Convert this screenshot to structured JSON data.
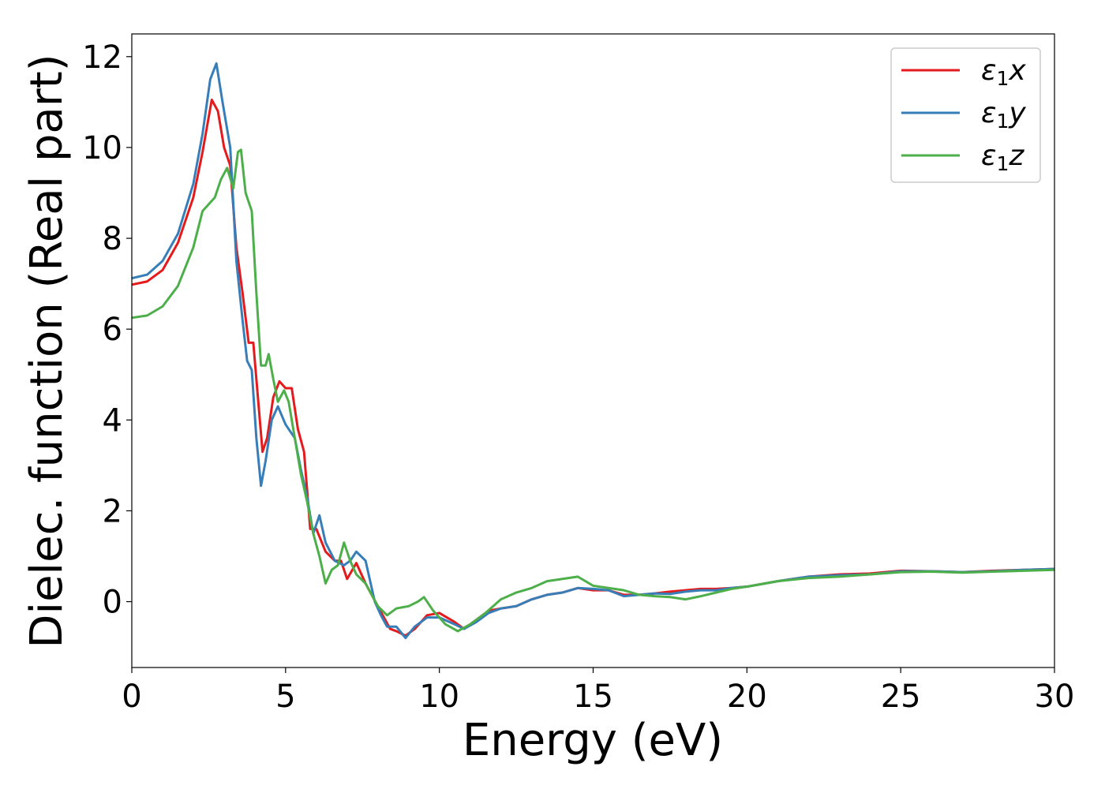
{
  "chart_data": {
    "type": "line",
    "title": "",
    "xlabel": "Energy (eV)",
    "ylabel": "Dielec. function (Real part)",
    "xlim": [
      0,
      30
    ],
    "ylim": [
      -1.45,
      12.5
    ],
    "xticks": [
      0,
      5,
      10,
      15,
      20,
      25,
      30
    ],
    "yticks": [
      0,
      2,
      4,
      6,
      8,
      10,
      12
    ],
    "grid": false,
    "legend_position": "top-right",
    "series": [
      {
        "name": "ε₁x",
        "legend_base": "ε",
        "legend_sub": "1",
        "legend_suffix": "x",
        "color": "#e41a1c",
        "points": [
          [
            0,
            6.98
          ],
          [
            0.5,
            7.05
          ],
          [
            1.0,
            7.3
          ],
          [
            1.5,
            7.9
          ],
          [
            2.0,
            8.9
          ],
          [
            2.3,
            9.9
          ],
          [
            2.6,
            11.05
          ],
          [
            2.8,
            10.8
          ],
          [
            3.0,
            10.0
          ],
          [
            3.2,
            9.6
          ],
          [
            3.4,
            7.8
          ],
          [
            3.6,
            6.8
          ],
          [
            3.8,
            5.7
          ],
          [
            3.95,
            5.7
          ],
          [
            4.1,
            4.5
          ],
          [
            4.25,
            3.3
          ],
          [
            4.4,
            3.6
          ],
          [
            4.6,
            4.5
          ],
          [
            4.8,
            4.85
          ],
          [
            5.0,
            4.7
          ],
          [
            5.2,
            4.7
          ],
          [
            5.4,
            3.8
          ],
          [
            5.6,
            3.3
          ],
          [
            5.8,
            1.6
          ],
          [
            6.0,
            1.6
          ],
          [
            6.3,
            1.1
          ],
          [
            6.6,
            0.9
          ],
          [
            6.8,
            0.9
          ],
          [
            7.0,
            0.5
          ],
          [
            7.3,
            0.85
          ],
          [
            7.6,
            0.4
          ],
          [
            8.0,
            -0.1
          ],
          [
            8.4,
            -0.6
          ],
          [
            8.6,
            -0.65
          ],
          [
            8.9,
            -0.75
          ],
          [
            9.2,
            -0.6
          ],
          [
            9.6,
            -0.3
          ],
          [
            10.0,
            -0.25
          ],
          [
            10.5,
            -0.45
          ],
          [
            10.8,
            -0.6
          ],
          [
            11.2,
            -0.4
          ],
          [
            11.6,
            -0.2
          ],
          [
            12.0,
            -0.15
          ],
          [
            12.5,
            -0.1
          ],
          [
            13.0,
            0.05
          ],
          [
            13.5,
            0.15
          ],
          [
            14.0,
            0.2
          ],
          [
            14.5,
            0.3
          ],
          [
            15.0,
            0.25
          ],
          [
            15.5,
            0.25
          ],
          [
            16.0,
            0.15
          ],
          [
            16.5,
            0.15
          ],
          [
            17.0,
            0.18
          ],
          [
            17.5,
            0.22
          ],
          [
            18.0,
            0.25
          ],
          [
            18.5,
            0.28
          ],
          [
            19.0,
            0.28
          ],
          [
            19.5,
            0.3
          ],
          [
            20.0,
            0.33
          ],
          [
            21.0,
            0.45
          ],
          [
            22.0,
            0.55
          ],
          [
            23.0,
            0.6
          ],
          [
            24.0,
            0.62
          ],
          [
            25.0,
            0.68
          ],
          [
            26.0,
            0.67
          ],
          [
            27.0,
            0.65
          ],
          [
            28.0,
            0.68
          ],
          [
            29.0,
            0.7
          ],
          [
            30.0,
            0.72
          ]
        ]
      },
      {
        "name": "ε₁y",
        "legend_base": "ε",
        "legend_sub": "1",
        "legend_suffix": "y",
        "color": "#377eb8",
        "points": [
          [
            0,
            7.12
          ],
          [
            0.5,
            7.2
          ],
          [
            1.0,
            7.5
          ],
          [
            1.5,
            8.1
          ],
          [
            2.0,
            9.2
          ],
          [
            2.3,
            10.3
          ],
          [
            2.55,
            11.5
          ],
          [
            2.75,
            11.85
          ],
          [
            2.95,
            11.0
          ],
          [
            3.2,
            10.0
          ],
          [
            3.4,
            7.5
          ],
          [
            3.6,
            6.2
          ],
          [
            3.75,
            5.3
          ],
          [
            3.9,
            5.1
          ],
          [
            4.05,
            3.6
          ],
          [
            4.2,
            2.55
          ],
          [
            4.35,
            3.1
          ],
          [
            4.55,
            4.0
          ],
          [
            4.75,
            4.3
          ],
          [
            5.0,
            3.9
          ],
          [
            5.3,
            3.6
          ],
          [
            5.5,
            2.9
          ],
          [
            5.7,
            2.3
          ],
          [
            5.9,
            1.5
          ],
          [
            6.1,
            1.9
          ],
          [
            6.3,
            1.3
          ],
          [
            6.6,
            0.9
          ],
          [
            6.9,
            0.8
          ],
          [
            7.1,
            0.9
          ],
          [
            7.3,
            1.1
          ],
          [
            7.6,
            0.9
          ],
          [
            7.9,
            0.0
          ],
          [
            8.1,
            -0.3
          ],
          [
            8.3,
            -0.55
          ],
          [
            8.6,
            -0.55
          ],
          [
            8.9,
            -0.8
          ],
          [
            9.2,
            -0.55
          ],
          [
            9.6,
            -0.35
          ],
          [
            10.0,
            -0.35
          ],
          [
            10.5,
            -0.5
          ],
          [
            10.8,
            -0.6
          ],
          [
            11.2,
            -0.45
          ],
          [
            11.6,
            -0.25
          ],
          [
            12.0,
            -0.15
          ],
          [
            12.5,
            -0.1
          ],
          [
            13.0,
            0.05
          ],
          [
            13.5,
            0.15
          ],
          [
            14.0,
            0.2
          ],
          [
            14.5,
            0.3
          ],
          [
            15.0,
            0.28
          ],
          [
            15.5,
            0.25
          ],
          [
            16.0,
            0.12
          ],
          [
            16.5,
            0.15
          ],
          [
            17.0,
            0.18
          ],
          [
            17.5,
            0.17
          ],
          [
            18.0,
            0.22
          ],
          [
            18.5,
            0.25
          ],
          [
            19.0,
            0.25
          ],
          [
            19.5,
            0.3
          ],
          [
            20.0,
            0.33
          ],
          [
            21.0,
            0.45
          ],
          [
            22.0,
            0.55
          ],
          [
            23.0,
            0.58
          ],
          [
            24.0,
            0.6
          ],
          [
            25.0,
            0.67
          ],
          [
            26.0,
            0.67
          ],
          [
            27.0,
            0.65
          ],
          [
            28.0,
            0.67
          ],
          [
            29.0,
            0.7
          ],
          [
            30.0,
            0.72
          ]
        ]
      },
      {
        "name": "ε₁z",
        "legend_base": "ε",
        "legend_sub": "1",
        "legend_suffix": "z",
        "color": "#4daf4a",
        "points": [
          [
            0,
            6.25
          ],
          [
            0.5,
            6.3
          ],
          [
            1.0,
            6.5
          ],
          [
            1.5,
            6.95
          ],
          [
            2.0,
            7.8
          ],
          [
            2.3,
            8.6
          ],
          [
            2.5,
            8.75
          ],
          [
            2.7,
            8.9
          ],
          [
            2.9,
            9.3
          ],
          [
            3.1,
            9.55
          ],
          [
            3.3,
            9.1
          ],
          [
            3.45,
            9.9
          ],
          [
            3.55,
            9.95
          ],
          [
            3.7,
            9.0
          ],
          [
            3.9,
            8.6
          ],
          [
            4.05,
            6.8
          ],
          [
            4.2,
            5.2
          ],
          [
            4.35,
            5.2
          ],
          [
            4.45,
            5.45
          ],
          [
            4.6,
            4.9
          ],
          [
            4.75,
            4.4
          ],
          [
            4.95,
            4.65
          ],
          [
            5.1,
            4.4
          ],
          [
            5.3,
            3.6
          ],
          [
            5.5,
            2.8
          ],
          [
            5.7,
            2.2
          ],
          [
            5.9,
            1.5
          ],
          [
            6.1,
            1.0
          ],
          [
            6.3,
            0.4
          ],
          [
            6.5,
            0.7
          ],
          [
            6.7,
            0.8
          ],
          [
            6.9,
            1.3
          ],
          [
            7.1,
            0.9
          ],
          [
            7.3,
            0.6
          ],
          [
            7.6,
            0.4
          ],
          [
            8.0,
            -0.1
          ],
          [
            8.3,
            -0.3
          ],
          [
            8.6,
            -0.15
          ],
          [
            9.0,
            -0.1
          ],
          [
            9.3,
            -0.0
          ],
          [
            9.5,
            0.1
          ],
          [
            9.8,
            -0.2
          ],
          [
            10.2,
            -0.5
          ],
          [
            10.6,
            -0.65
          ],
          [
            11.0,
            -0.5
          ],
          [
            11.5,
            -0.25
          ],
          [
            12.0,
            0.05
          ],
          [
            12.5,
            0.2
          ],
          [
            13.0,
            0.3
          ],
          [
            13.5,
            0.45
          ],
          [
            14.0,
            0.5
          ],
          [
            14.5,
            0.55
          ],
          [
            15.0,
            0.35
          ],
          [
            15.5,
            0.3
          ],
          [
            16.0,
            0.25
          ],
          [
            16.5,
            0.15
          ],
          [
            17.0,
            0.12
          ],
          [
            17.5,
            0.1
          ],
          [
            18.0,
            0.05
          ],
          [
            18.5,
            0.12
          ],
          [
            19.0,
            0.2
          ],
          [
            19.5,
            0.28
          ],
          [
            20.0,
            0.33
          ],
          [
            21.0,
            0.45
          ],
          [
            22.0,
            0.52
          ],
          [
            23.0,
            0.55
          ],
          [
            24.0,
            0.6
          ],
          [
            25.0,
            0.65
          ],
          [
            26.0,
            0.66
          ],
          [
            27.0,
            0.64
          ],
          [
            28.0,
            0.66
          ],
          [
            29.0,
            0.68
          ],
          [
            30.0,
            0.7
          ]
        ]
      }
    ]
  }
}
